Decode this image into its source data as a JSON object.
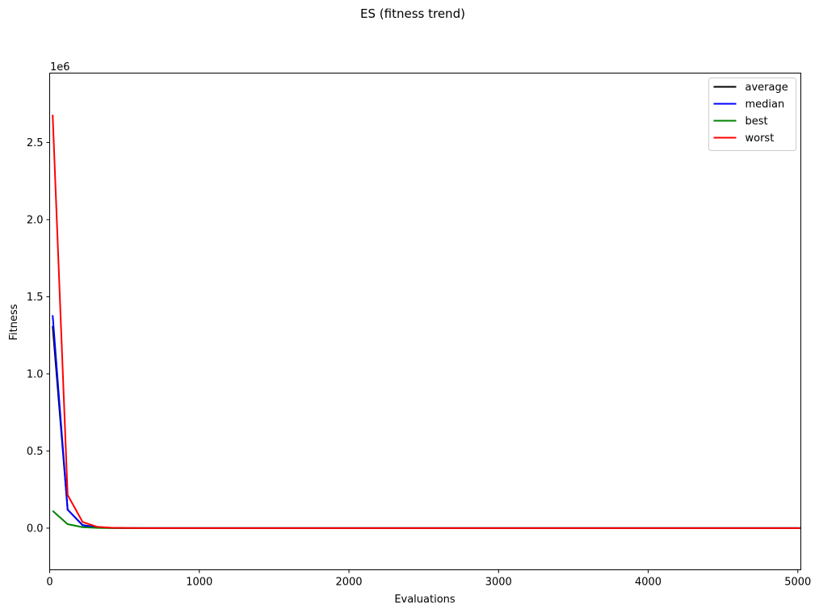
{
  "chart_data": {
    "type": "line",
    "title": "ES (fitness trend)",
    "xlabel": "Evaluations",
    "ylabel": "Fitness",
    "offset_text": "1e6",
    "xlim": [
      0,
      5020
    ],
    "ylim": [
      -270000,
      2950000
    ],
    "xticks": [
      0,
      1000,
      2000,
      3000,
      4000,
      5000
    ],
    "xtick_labels": [
      "0",
      "1000",
      "2000",
      "3000",
      "4000",
      "5000"
    ],
    "yticks": [
      0,
      500000,
      1000000,
      1500000,
      2000000,
      2500000
    ],
    "ytick_labels": [
      "0.0",
      "0.5",
      "1.0",
      "1.5",
      "2.0",
      "2.5"
    ],
    "legend_position": "top-right",
    "grid": false,
    "x": [
      20,
      120,
      220,
      320,
      420,
      520,
      620,
      720,
      5020
    ],
    "series": [
      {
        "name": "average",
        "color": "#000000",
        "values": [
          1310000,
          120000,
          20000,
          5000,
          1500,
          500,
          200,
          100,
          0
        ]
      },
      {
        "name": "median",
        "color": "#0000ff",
        "values": [
          1380000,
          120000,
          18000,
          4000,
          1200,
          400,
          150,
          80,
          0
        ]
      },
      {
        "name": "best",
        "color": "#008000",
        "values": [
          112000,
          26000,
          6000,
          1500,
          400,
          150,
          60,
          30,
          0
        ]
      },
      {
        "name": "worst",
        "color": "#ff0000",
        "values": [
          2680000,
          215000,
          40000,
          8000,
          2500,
          800,
          300,
          150,
          0
        ]
      }
    ]
  }
}
